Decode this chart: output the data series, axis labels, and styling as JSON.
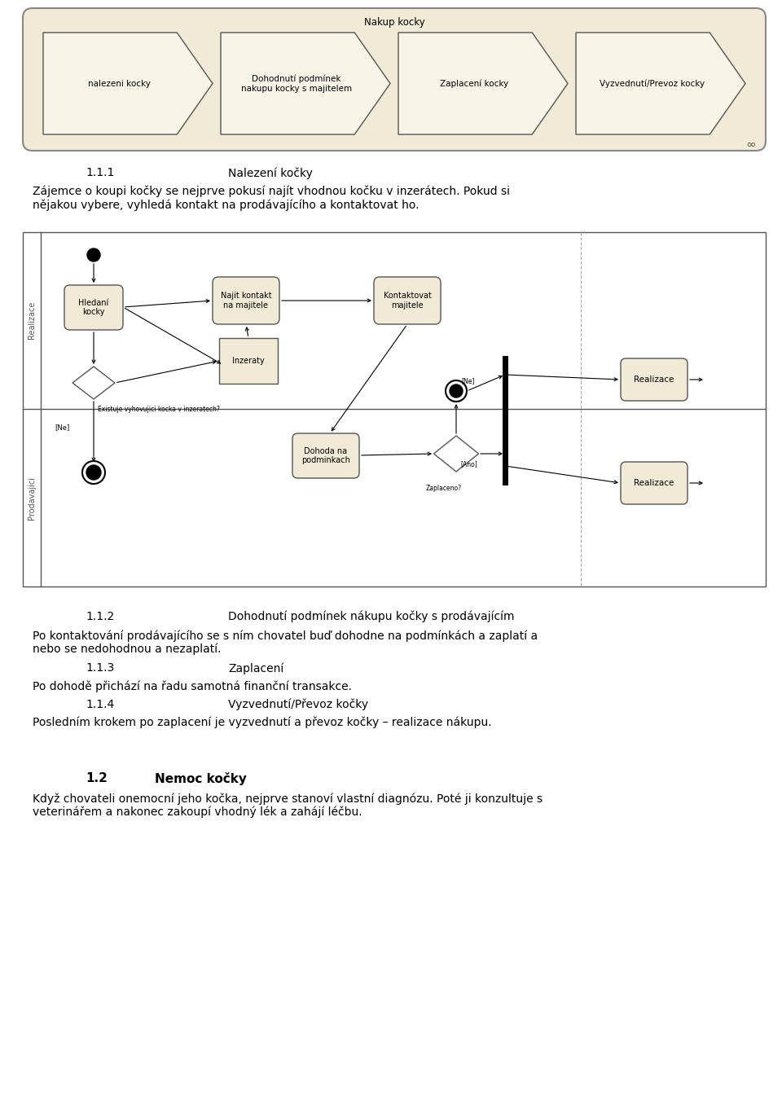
{
  "bg_color": "#ffffff",
  "page_width": 9.6,
  "page_height": 13.59,
  "top_diagram_bg": "#f0ead6",
  "top_diagram_border": "#888888",
  "shape_bg": "#f8f4e8",
  "shape_border": "#555555",
  "node_bg": "#f0ead6",
  "node_border": "#555555",
  "arrow_color": "#000000",
  "text_color": "#000000",
  "section_111_num": "1.1.1",
  "section_111_title": "Nalezení kočky",
  "section_111_body": "Zájemce o koupi kočky se nejprve pokusí najít vhodnou kočku v inzerátech. Pokud si\nnějakou vybere, vyhledá kontakt na prodávajícího a kontaktovat ho.",
  "section_112_num": "1.1.2",
  "section_112_title": "Dohodnutí podmínek nákupu kočky s prodávajícím",
  "section_112_body": "Po kontaktování prodávajícího se s ním chovatel buď dohodne na podmínkách a zaplatí a\nnebo se nedohodnou a nezaplatí.",
  "section_113_num": "1.1.3",
  "section_113_title": "Zaplacení",
  "section_113_body": "Po dohodě přichází na řadu samotná finanční transakce.",
  "section_114_num": "1.1.4",
  "section_114_title": "Vyzvednutí/Převoz kočky",
  "section_114_body": "Posledním krokem po zaplacení je vyzvednutí a převoz kočky – realizace nákupu.",
  "section_12_num": "1.2",
  "section_12_title": "Nemoc kočky",
  "section_12_body": "Když chovateli onemocní jeho kočka, nejprve stanoví vlastní diagnózu. Poté ji konzultuje s\nveterinářem a nakonec zakoupí vhodný lék a zahájí léčbu.",
  "chevron_labels": [
    "nalezeni kocky",
    "Dohodnutí podmínek\nnakupu kocky s majitelem",
    "Zaplacení kocky",
    "Vyzvednutí/Prevoz kocky"
  ]
}
